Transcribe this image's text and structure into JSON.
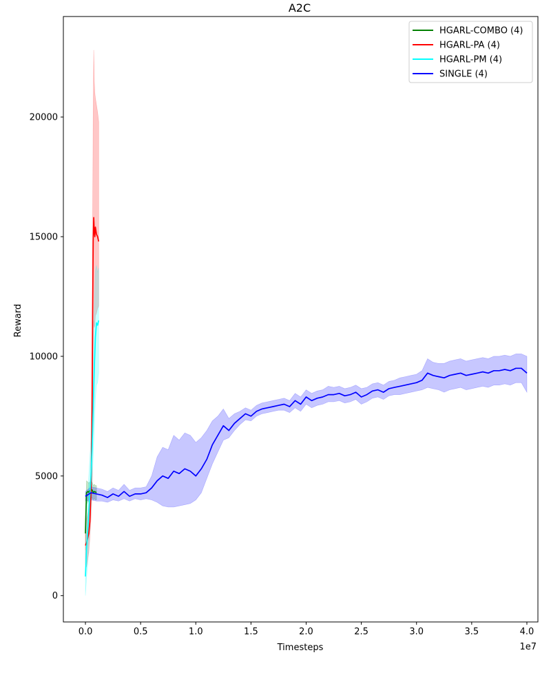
{
  "chart_data": {
    "type": "line",
    "title": "A2C",
    "xlabel": "Timesteps",
    "ylabel": "Reward",
    "x_multiplier_label": "1e7",
    "xlim": [
      -0.2,
      4.1
    ],
    "ylim": [
      -1100,
      24200
    ],
    "x_ticks": [
      0.0,
      0.5,
      1.0,
      1.5,
      2.0,
      2.5,
      3.0,
      3.5,
      4.0
    ],
    "x_tick_labels": [
      "0.0",
      "0.5",
      "1.0",
      "1.5",
      "2.0",
      "2.5",
      "3.0",
      "3.5",
      "4.0"
    ],
    "y_ticks": [
      0,
      5000,
      10000,
      15000,
      20000
    ],
    "y_tick_labels": [
      "0",
      "5000",
      "10000",
      "15000",
      "20000"
    ],
    "grid": false,
    "legend_position": "top-right",
    "series": [
      {
        "name": "HGARL-COMBO (4)",
        "color": "#008000",
        "x": [
          0.0,
          0.01,
          0.02,
          0.03,
          0.04,
          0.05,
          0.06,
          0.07,
          0.08,
          0.09,
          0.1
        ],
        "mean": [
          2600,
          4300,
          4350,
          4320,
          4400,
          4380,
          4420,
          4300,
          4350,
          4330,
          4300
        ],
        "low": [
          1900,
          3800,
          3950,
          3900,
          4050,
          4000,
          4100,
          4000,
          4050,
          4000,
          4000
        ],
        "high": [
          3300,
          4800,
          4750,
          4700,
          4750,
          4700,
          4750,
          4600,
          4650,
          4600,
          4600
        ]
      },
      {
        "name": "HGARL-PA (4)",
        "color": "#ff0000",
        "x": [
          0.0,
          0.01,
          0.02,
          0.03,
          0.04,
          0.05,
          0.06,
          0.065,
          0.07,
          0.075,
          0.08,
          0.085,
          0.09,
          0.1,
          0.11,
          0.12
        ],
        "mean": [
          2100,
          2200,
          2400,
          2600,
          3100,
          4300,
          7800,
          11800,
          14800,
          15800,
          15200,
          15000,
          15400,
          15100,
          15000,
          14800
        ],
        "low": [
          1300,
          1200,
          1500,
          1800,
          2400,
          3200,
          5000,
          8000,
          10000,
          11500,
          11200,
          11300,
          11700,
          11800,
          12000,
          12100
        ],
        "high": [
          2800,
          3200,
          3400,
          3600,
          4200,
          5600,
          11000,
          15800,
          20200,
          22800,
          21500,
          21000,
          20800,
          20500,
          20200,
          19800
        ]
      },
      {
        "name": "HGARL-PM (4)",
        "color": "#00ffff",
        "x": [
          0.0,
          0.01,
          0.02,
          0.03,
          0.04,
          0.05,
          0.06,
          0.07,
          0.08,
          0.09,
          0.1,
          0.11,
          0.12
        ],
        "mean": [
          800,
          1900,
          2700,
          3500,
          4200,
          5000,
          6200,
          7800,
          9500,
          10800,
          11400,
          11300,
          11500
        ],
        "low": [
          0,
          700,
          1300,
          2000,
          2800,
          3500,
          4500,
          5800,
          7000,
          8200,
          8800,
          8900,
          9300
        ],
        "high": [
          1600,
          3100,
          4100,
          5000,
          5800,
          6500,
          8200,
          10300,
          12200,
          13600,
          13800,
          13500,
          13700
        ]
      },
      {
        "name": "SINGLE (4)",
        "color": "#0000ff",
        "x": [
          0.0,
          0.05,
          0.1,
          0.15,
          0.2,
          0.25,
          0.3,
          0.35,
          0.4,
          0.45,
          0.5,
          0.55,
          0.6,
          0.65,
          0.7,
          0.75,
          0.8,
          0.85,
          0.9,
          0.95,
          1.0,
          1.05,
          1.1,
          1.15,
          1.2,
          1.25,
          1.3,
          1.35,
          1.4,
          1.45,
          1.5,
          1.55,
          1.6,
          1.65,
          1.7,
          1.75,
          1.8,
          1.85,
          1.9,
          1.95,
          2.0,
          2.05,
          2.1,
          2.15,
          2.2,
          2.25,
          2.3,
          2.35,
          2.4,
          2.45,
          2.5,
          2.55,
          2.6,
          2.65,
          2.7,
          2.75,
          2.8,
          2.85,
          2.9,
          2.95,
          3.0,
          3.05,
          3.1,
          3.15,
          3.2,
          3.25,
          3.3,
          3.35,
          3.4,
          3.45,
          3.5,
          3.55,
          3.6,
          3.65,
          3.7,
          3.75,
          3.8,
          3.85,
          3.9,
          3.95,
          4.0
        ],
        "mean": [
          4150,
          4300,
          4250,
          4200,
          4100,
          4250,
          4150,
          4350,
          4150,
          4250,
          4250,
          4300,
          4500,
          4800,
          5000,
          4900,
          5200,
          5100,
          5300,
          5200,
          5000,
          5300,
          5700,
          6300,
          6700,
          7100,
          6900,
          7200,
          7400,
          7600,
          7500,
          7700,
          7800,
          7850,
          7900,
          7950,
          8000,
          7900,
          8150,
          8000,
          8300,
          8150,
          8250,
          8300,
          8400,
          8400,
          8450,
          8350,
          8400,
          8500,
          8300,
          8400,
          8550,
          8600,
          8500,
          8650,
          8700,
          8750,
          8800,
          8850,
          8900,
          9000,
          9300,
          9200,
          9150,
          9100,
          9200,
          9250,
          9300,
          9200,
          9250,
          9300,
          9350,
          9300,
          9400,
          9400,
          9450,
          9400,
          9500,
          9500,
          9300
        ],
        "low": [
          3950,
          4000,
          3950,
          3950,
          3900,
          4000,
          3950,
          4050,
          3950,
          4050,
          4000,
          4050,
          4000,
          3900,
          3750,
          3700,
          3700,
          3750,
          3800,
          3850,
          4000,
          4300,
          4900,
          5500,
          6000,
          6500,
          6600,
          6900,
          7150,
          7350,
          7300,
          7500,
          7600,
          7650,
          7700,
          7750,
          7750,
          7650,
          7850,
          7700,
          8000,
          7850,
          7950,
          8000,
          8100,
          8100,
          8150,
          8050,
          8100,
          8200,
          8000,
          8100,
          8250,
          8300,
          8200,
          8350,
          8400,
          8400,
          8450,
          8500,
          8550,
          8600,
          8700,
          8650,
          8600,
          8500,
          8600,
          8650,
          8700,
          8600,
          8650,
          8700,
          8750,
          8700,
          8800,
          8800,
          8850,
          8800,
          8900,
          8900,
          8500
        ],
        "high": [
          4350,
          4550,
          4500,
          4450,
          4350,
          4500,
          4400,
          4650,
          4400,
          4500,
          4500,
          4550,
          5000,
          5800,
          6200,
          6100,
          6700,
          6500,
          6800,
          6700,
          6400,
          6600,
          6900,
          7300,
          7500,
          7800,
          7400,
          7600,
          7700,
          7850,
          7750,
          7950,
          8050,
          8100,
          8150,
          8200,
          8250,
          8150,
          8450,
          8300,
          8600,
          8450,
          8550,
          8600,
          8750,
          8700,
          8750,
          8650,
          8700,
          8800,
          8650,
          8700,
          8850,
          8900,
          8800,
          8950,
          9000,
          9100,
          9150,
          9200,
          9250,
          9400,
          9900,
          9750,
          9700,
          9700,
          9800,
          9850,
          9900,
          9800,
          9850,
          9900,
          9950,
          9900,
          10000,
          10000,
          10050,
          10000,
          10100,
          10100,
          10000
        ]
      }
    ]
  }
}
